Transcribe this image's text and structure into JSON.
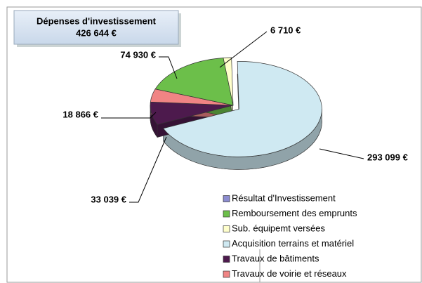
{
  "chart_data": {
    "type": "pie",
    "title": "Dépenses d'investissement",
    "subtitle": "426 644 €",
    "categories": [
      "Résultat d'Investissement",
      "Remboursement des emprunts",
      "Sub. équipemt versées",
      "Acquisition terrains et matériel",
      "Travaux de bâtiments",
      "Travaux de voirie et réseaux"
    ],
    "values": [
      0,
      74930,
      6710,
      293099,
      33039,
      18866
    ],
    "value_labels": [
      null,
      "74 930 €",
      "6 710 €",
      "293 099 €",
      "33 039 €",
      "18 866 €"
    ],
    "colors": [
      "#8c8cd0",
      "#6cbf4a",
      "#ffffcc",
      "#cfe9f2",
      "#4d1a4d",
      "#f08484"
    ]
  }
}
